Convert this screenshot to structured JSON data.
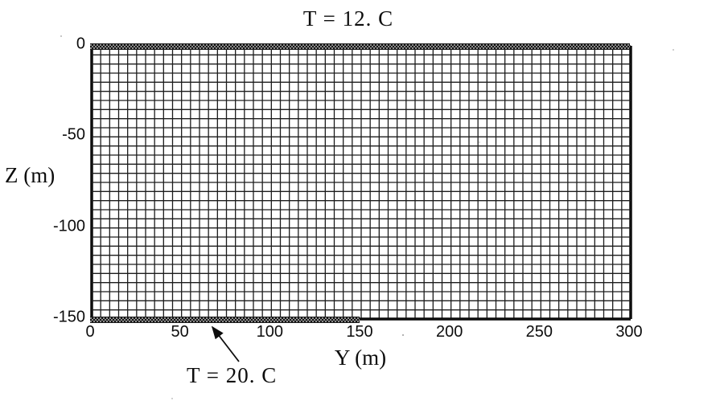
{
  "figure": {
    "title": "T = 12. C",
    "x_axis": {
      "label": "Y (m)",
      "ticks": [
        "0",
        "50",
        "100",
        "150",
        "200",
        "250",
        "300"
      ]
    },
    "y_axis": {
      "label": "Z (m)",
      "ticks": [
        "0",
        "-50",
        "-100",
        "-150"
      ]
    },
    "annotation": {
      "text": "T = 20. C"
    }
  },
  "chart_data": {
    "type": "mesh",
    "title": "T = 12. C",
    "xlabel": "Y (m)",
    "ylabel": "Z (m)",
    "xlim": [
      0,
      300
    ],
    "ylim": [
      -150,
      0
    ],
    "x_ticks": [
      0,
      50,
      100,
      150,
      200,
      250,
      300
    ],
    "y_ticks": [
      0,
      -50,
      -100,
      -150
    ],
    "grid": {
      "n_cols": 60,
      "n_rows": 30,
      "cell_size_m": 5,
      "grid_on": true
    },
    "boundaries": [
      {
        "edge": "top",
        "label": "T = 12. C",
        "from_y_m": 0,
        "to_y_m": 300,
        "style": "stippled-band"
      },
      {
        "edge": "bottom",
        "label": "T = 20. C",
        "from_y_m": 0,
        "to_y_m": 150,
        "style": "stippled-band"
      }
    ],
    "legend": "none"
  },
  "colors": {
    "grid_line": "#1c1c1c",
    "border_line": "#0d0d0d",
    "band_dark": "#141414",
    "band_light": "#8d8d8d",
    "background": "#ffffff",
    "text": "#0d0d0d"
  }
}
